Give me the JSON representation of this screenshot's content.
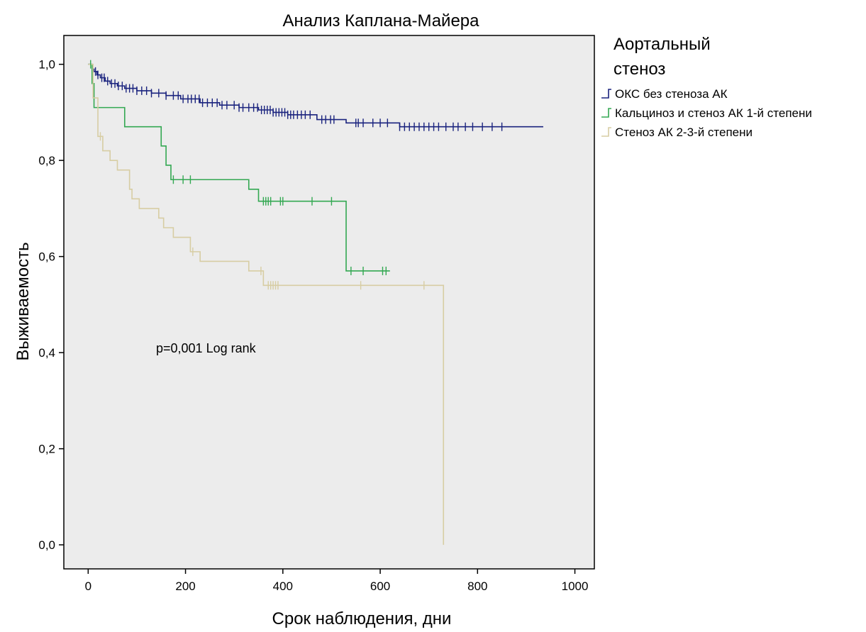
{
  "chart_data": {
    "type": "line",
    "subtype": "kaplan-meier step survival curves",
    "title": "Анализ Каплана-Майера",
    "xlabel": "Срок наблюдения, дни",
    "ylabel": "Выживаемость",
    "xlim": [
      -50,
      1040
    ],
    "ylim": [
      -0.05,
      1.06
    ],
    "x_ticks": [
      0,
      200,
      400,
      600,
      800,
      1000
    ],
    "x_tick_labels": [
      "0",
      "200",
      "400",
      "600",
      "800",
      "1000"
    ],
    "y_ticks": [
      0.0,
      0.2,
      0.4,
      0.6,
      0.8,
      1.0
    ],
    "y_tick_labels": [
      "0,0",
      "0,2",
      "0,4",
      "0,6",
      "0,8",
      "1,0"
    ],
    "grid": false,
    "plot_background": "#ececec",
    "legend": {
      "title": "Аортальный стеноз",
      "placement": "right, outside plot, top"
    },
    "annotation": "p=0,001 Log rank",
    "series": [
      {
        "name": "ОКС без стеноза АК",
        "color": "#1a237e",
        "steps": [
          [
            0,
            1.0
          ],
          [
            8,
            0.99
          ],
          [
            12,
            0.985
          ],
          [
            18,
            0.978
          ],
          [
            25,
            0.972
          ],
          [
            35,
            0.965
          ],
          [
            45,
            0.96
          ],
          [
            60,
            0.955
          ],
          [
            75,
            0.95
          ],
          [
            100,
            0.945
          ],
          [
            130,
            0.94
          ],
          [
            160,
            0.935
          ],
          [
            190,
            0.928
          ],
          [
            230,
            0.92
          ],
          [
            270,
            0.915
          ],
          [
            310,
            0.91
          ],
          [
            350,
            0.905
          ],
          [
            380,
            0.9
          ],
          [
            410,
            0.895
          ],
          [
            470,
            0.885
          ],
          [
            530,
            0.878
          ],
          [
            640,
            0.87
          ],
          [
            935,
            0.87
          ]
        ],
        "censor_x": [
          15,
          20,
          28,
          33,
          40,
          48,
          55,
          62,
          70,
          78,
          85,
          92,
          100,
          110,
          120,
          130,
          145,
          160,
          175,
          185,
          195,
          205,
          212,
          220,
          228,
          235,
          245,
          255,
          265,
          275,
          285,
          300,
          310,
          318,
          330,
          340,
          348,
          356,
          362,
          368,
          374,
          380,
          386,
          392,
          398,
          404,
          410,
          416,
          422,
          430,
          438,
          446,
          456,
          480,
          488,
          498,
          505,
          550,
          555,
          565,
          585,
          600,
          615,
          640,
          650,
          660,
          670,
          680,
          690,
          700,
          710,
          720,
          735,
          750,
          760,
          775,
          790,
          810,
          830,
          850
        ]
      },
      {
        "name": "Кальциноз и стеноз АК 1-й степени",
        "color": "#33a852",
        "steps": [
          [
            0,
            1.0
          ],
          [
            8,
            0.96
          ],
          [
            12,
            0.91
          ],
          [
            75,
            0.87
          ],
          [
            150,
            0.83
          ],
          [
            160,
            0.79
          ],
          [
            170,
            0.76
          ],
          [
            330,
            0.74
          ],
          [
            350,
            0.715
          ],
          [
            530,
            0.57
          ],
          [
            620,
            0.57
          ]
        ],
        "censor_x": [
          5,
          175,
          195,
          210,
          360,
          365,
          370,
          375,
          395,
          400,
          460,
          500,
          540,
          565,
          605,
          612
        ]
      },
      {
        "name": "Стеноз АК 2-3-й степени",
        "color": "#d7cda3",
        "steps": [
          [
            0,
            1.0
          ],
          [
            10,
            0.93
          ],
          [
            20,
            0.85
          ],
          [
            30,
            0.82
          ],
          [
            45,
            0.8
          ],
          [
            60,
            0.78
          ],
          [
            85,
            0.74
          ],
          [
            90,
            0.72
          ],
          [
            105,
            0.7
          ],
          [
            145,
            0.68
          ],
          [
            155,
            0.66
          ],
          [
            175,
            0.64
          ],
          [
            210,
            0.61
          ],
          [
            230,
            0.59
          ],
          [
            330,
            0.57
          ],
          [
            360,
            0.54
          ],
          [
            730,
            0.54
          ],
          [
            730,
            0.0
          ]
        ],
        "censor_x": [
          25,
          215,
          355,
          370,
          375,
          380,
          385,
          390,
          560,
          690
        ]
      }
    ]
  }
}
